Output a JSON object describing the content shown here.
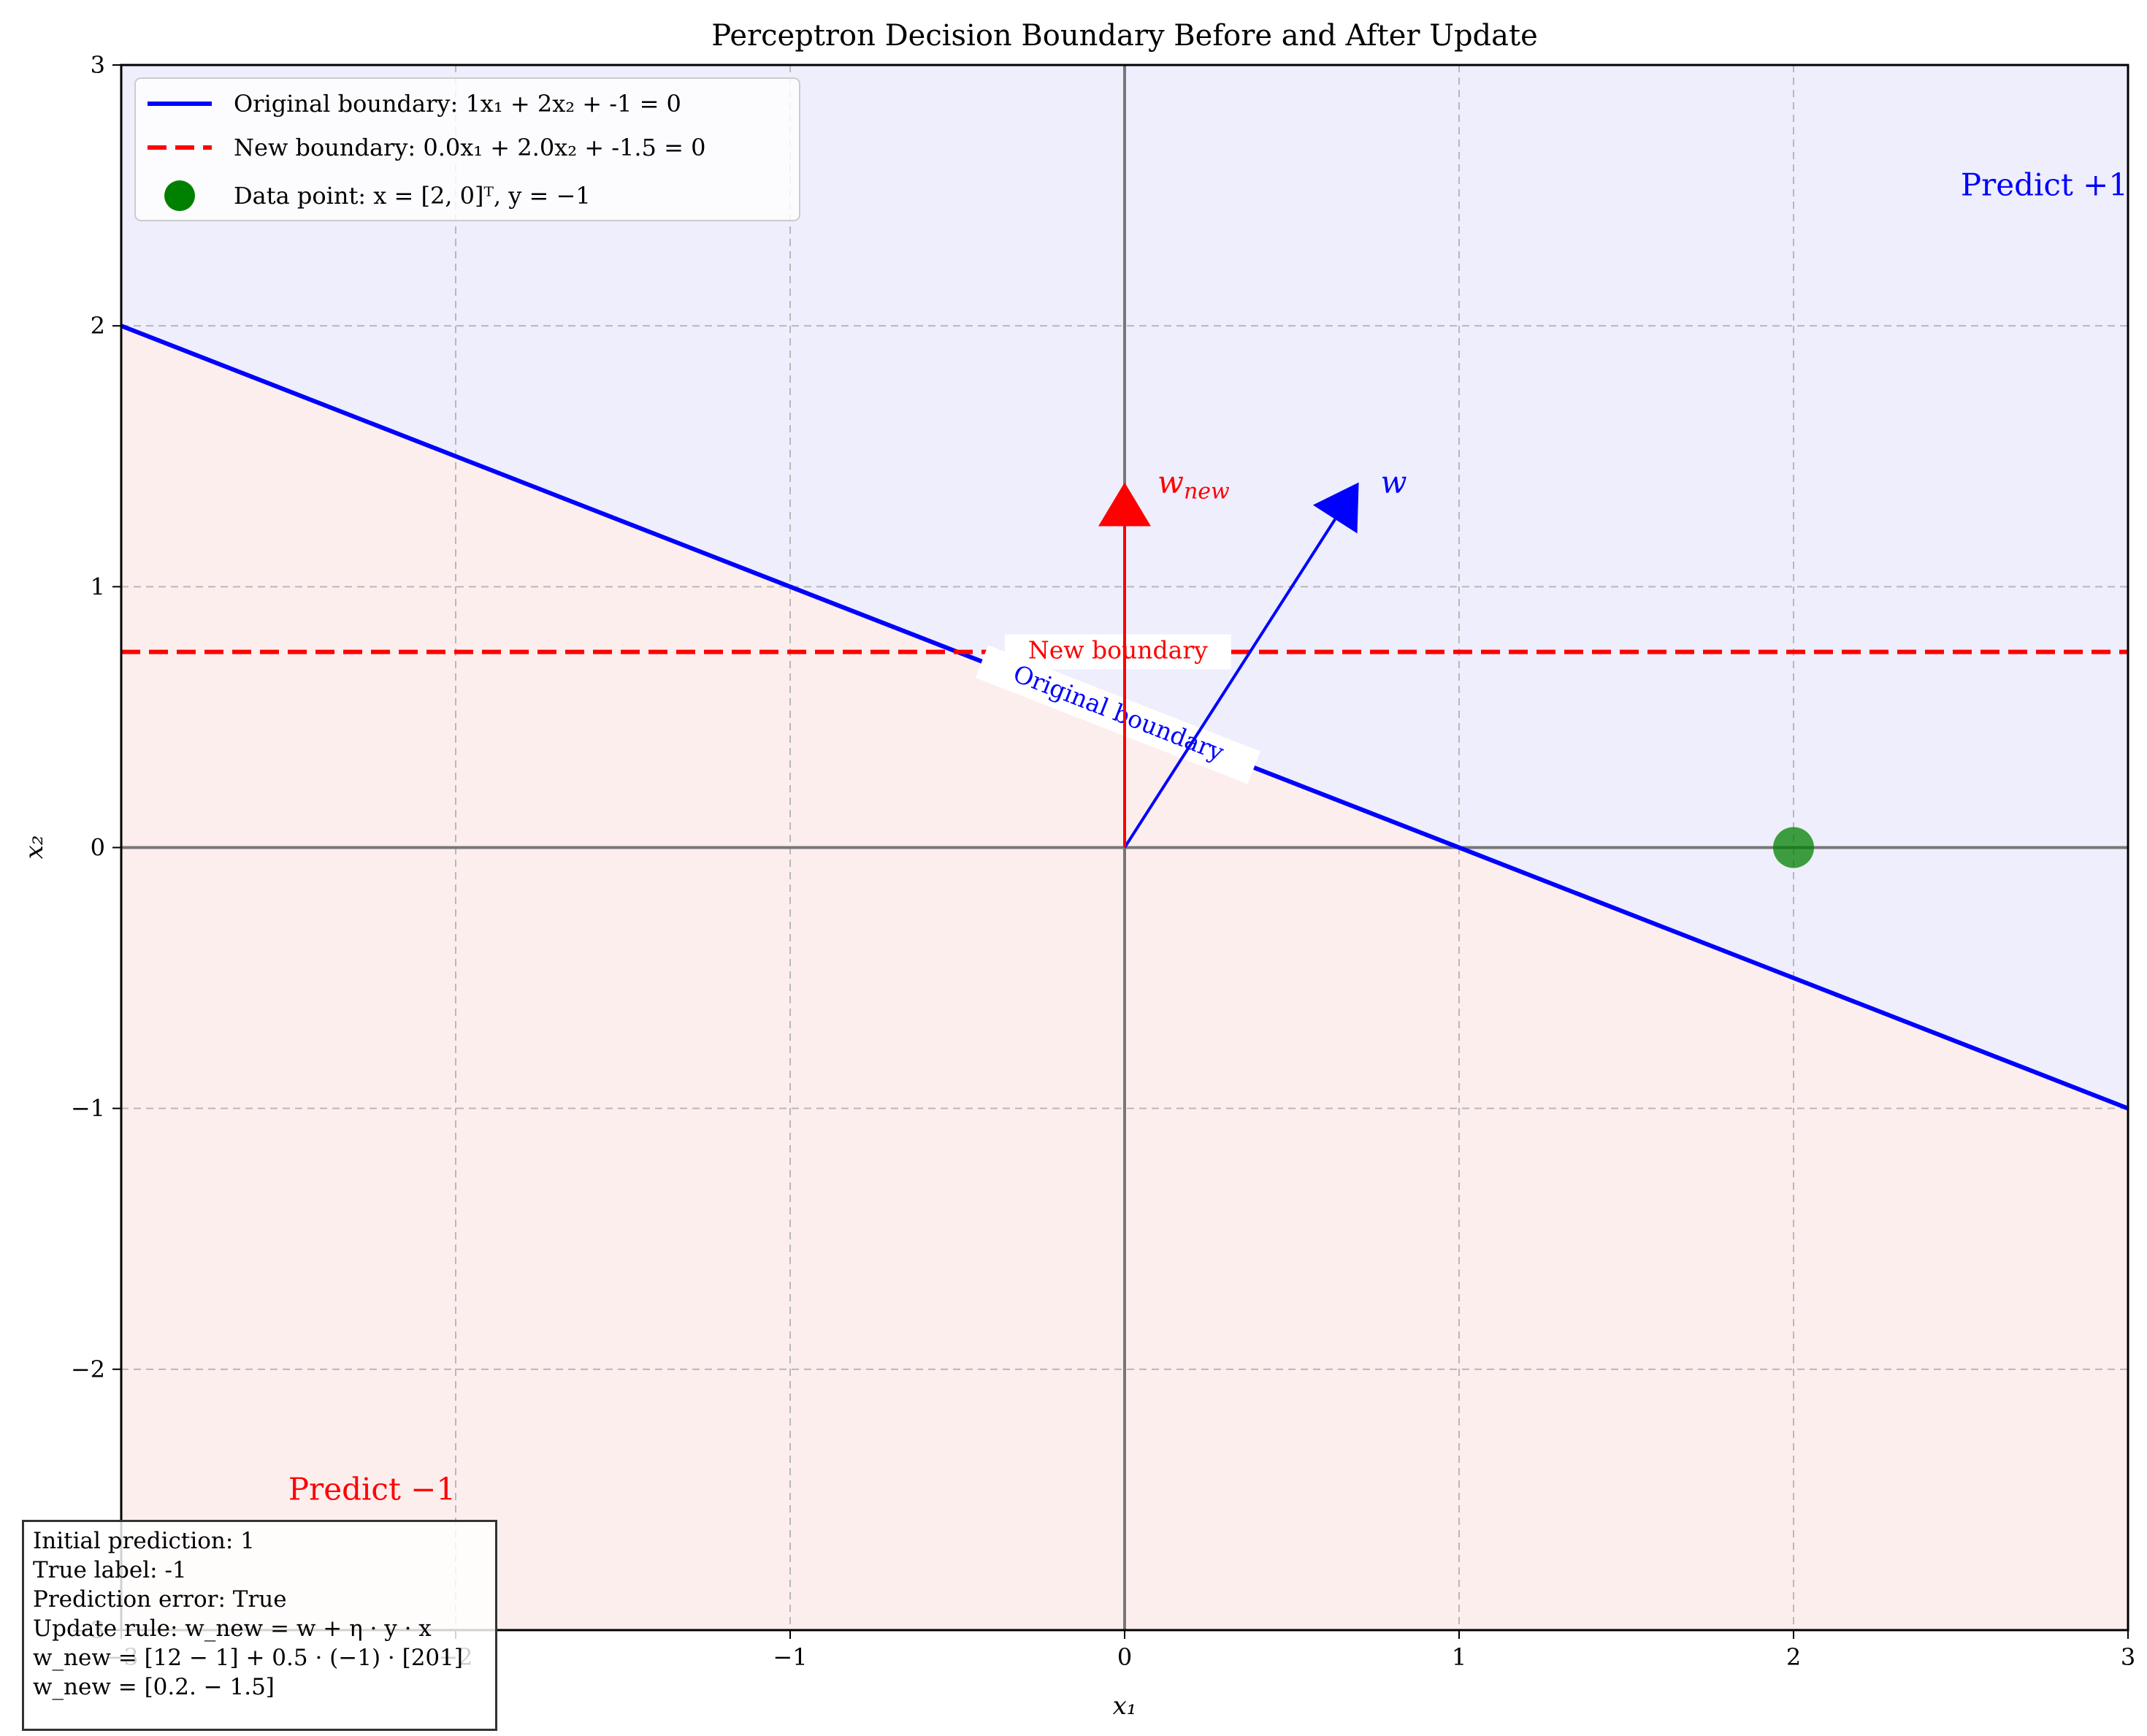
{
  "chart_data": {
    "type": "line",
    "title": "Perceptron Decision Boundary Before and After Update",
    "xlabel": "x₁",
    "ylabel": "x₂",
    "xlim": [
      -3,
      3
    ],
    "ylim": [
      -3,
      3
    ],
    "xticks": [
      -3,
      -2,
      -1,
      0,
      1,
      2,
      3
    ],
    "yticks": [
      -3,
      -2,
      -1,
      0,
      1,
      2,
      3
    ],
    "x_tick_labels": [
      "−3",
      "−2",
      "−1",
      "0",
      "1",
      "2",
      "3"
    ],
    "y_tick_labels": [
      "−3",
      "−2",
      "−1",
      "0",
      "1",
      "2",
      "3"
    ],
    "grid": true,
    "legend_position": "top-left",
    "colors": {
      "original": "#0000ff",
      "new": "#ff0000",
      "point": "#008000",
      "positive_region": "#eeeefc",
      "negative_region": "#fdeeee"
    },
    "series": [
      {
        "name": "Original boundary: 1x₁ + 2x₂ + -1 = 0",
        "style": "solid",
        "x": [
          -3,
          3
        ],
        "y": [
          2,
          -1
        ]
      },
      {
        "name": "New boundary: 0.0x₁ + 2.0x₂ + -1.5 = 0",
        "style": "dashed",
        "x": [
          -3,
          3
        ],
        "y": [
          0.75,
          0.75
        ]
      }
    ],
    "points": [
      {
        "name": "Data point: x = [2, 0]ᵀ, y = −1",
        "x": 2,
        "y": 0
      }
    ],
    "vectors": [
      {
        "label": "w",
        "from": [
          0,
          0
        ],
        "to": [
          0.7,
          1.4
        ]
      },
      {
        "label": "w",
        "sub": "new",
        "from": [
          0,
          0
        ],
        "to": [
          0,
          1.4
        ]
      }
    ],
    "annotations": {
      "original_line_label": "Original boundary",
      "new_line_label": "New boundary",
      "predict_pos": "Predict +1",
      "predict_neg": "Predict −1"
    },
    "info_lines": [
      "Initial prediction: 1",
      "True label: -1",
      "Prediction error: True",
      "Update rule: w_new = w + η · y · x",
      "w_new = [12 − 1] + 0.5 · (−1) · [201]",
      "w_new = [0.2. − 1.5]"
    ]
  }
}
